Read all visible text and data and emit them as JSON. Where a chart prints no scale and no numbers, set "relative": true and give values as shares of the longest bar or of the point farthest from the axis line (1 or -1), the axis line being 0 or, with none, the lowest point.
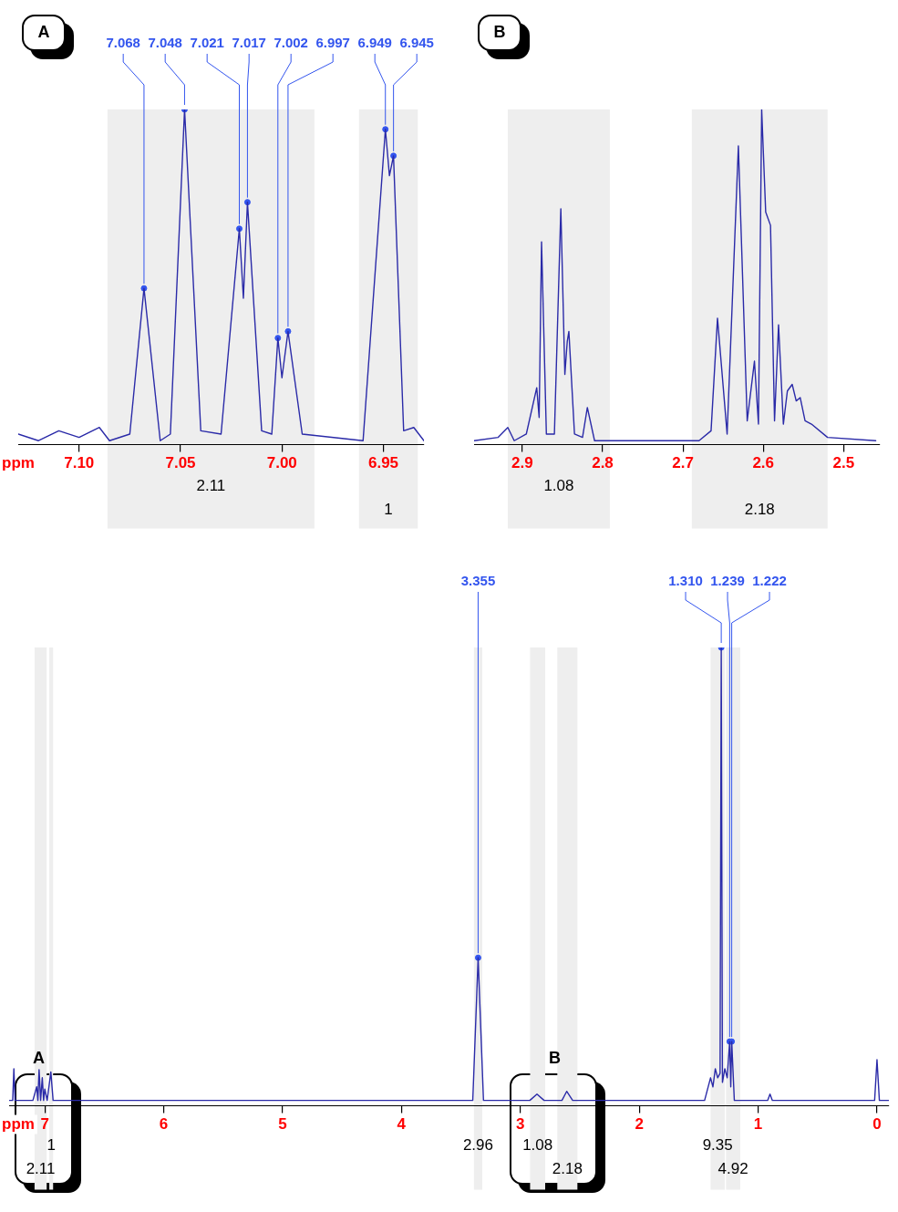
{
  "chart_data": [
    {
      "type": "line",
      "relative": true,
      "xlabel": "ppm",
      "xlim": [
        7.3,
        -0.1
      ],
      "xticks": [
        0,
        1,
        2,
        3,
        4,
        5,
        6,
        7
      ],
      "series": [
        {
          "color": "#2a2aa8",
          "x": [
            7.3,
            7.27,
            7.26,
            7.25,
            7.1,
            7.068,
            7.058,
            7.048,
            7.035,
            7.021,
            7.01,
            7.0,
            6.98,
            6.949,
            6.93,
            3.4,
            3.355,
            3.31,
            2.92,
            2.86,
            2.8,
            2.65,
            2.61,
            2.56,
            1.45,
            1.4,
            1.38,
            1.36,
            1.34,
            1.32,
            1.31,
            1.3,
            1.28,
            1.26,
            1.239,
            1.23,
            1.222,
            1.2,
            0.92,
            0.9,
            0.88,
            0.02,
            0,
            -0.02,
            -0.1
          ],
          "values": [
            0,
            0,
            0.07,
            0,
            0,
            0.03,
            0,
            0.068,
            0,
            0.05,
            0,
            0.025,
            0,
            0.063,
            0,
            0,
            0.315,
            0,
            0,
            0.014,
            0,
            0,
            0.02,
            0,
            0,
            0.05,
            0.03,
            0.07,
            0.05,
            0.06,
            1,
            0.04,
            0.07,
            0.05,
            0.13,
            0.03,
            0.13,
            0,
            0,
            0.014,
            0,
            0,
            0.09,
            0,
            0
          ]
        },
        {
          "type": "scatter",
          "marker": "circle",
          "color": "#3355ee",
          "x": [
            1.31,
            1.239,
            1.222,
            3.355
          ],
          "values": [
            1,
            0.13,
            0.13,
            0.315
          ]
        }
      ],
      "bands": [
        {
          "axis": "x",
          "from": 6.93,
          "to": 6.962,
          "label": "1",
          "color": "#eeeeee"
        },
        {
          "axis": "x",
          "from": 6.984,
          "to": 7.086,
          "label": "2.11",
          "color": "#eeeeee"
        },
        {
          "axis": "x",
          "from": 2.791,
          "to": 2.918,
          "label": "1.08",
          "color": "#eeeeee"
        },
        {
          "axis": "x",
          "from": 2.52,
          "to": 2.689,
          "label": "2.18",
          "color": "#eeeeee"
        },
        {
          "axis": "x",
          "from": 1.28,
          "to": 1.4,
          "label": "9.35",
          "color": "#eeeeee"
        },
        {
          "axis": "x",
          "from": 1.15,
          "to": 1.27,
          "label": "4.92",
          "color": "#eeeeee"
        },
        {
          "axis": "x",
          "from": 3.32,
          "to": 3.39,
          "label": "2.96",
          "color": "#eeeeee"
        }
      ],
      "annotations": [
        {
          "text": "1.310",
          "x": 1.31,
          "y": 1
        },
        {
          "text": "1.239",
          "x": 1.239,
          "y": 0.13
        },
        {
          "text": "1.222",
          "x": 1.222,
          "y": 0.13
        },
        {
          "text": "3.355",
          "x": 3.355,
          "y": 0.315
        },
        {
          "text": "A",
          "x": 7.05
        },
        {
          "text": "B",
          "x": 2.71
        }
      ]
    },
    {
      "type": "line",
      "relative": true,
      "xlabel": "ppm",
      "xlim": [
        7.13,
        6.93
      ],
      "xticks": [
        {
          "value": 6.95,
          "label": "6.95"
        },
        {
          "value": 7.0,
          "label": "7.00"
        },
        {
          "value": 7.05,
          "label": "7.05"
        },
        {
          "value": 7.1,
          "label": "7.10"
        }
      ],
      "series": [
        {
          "color": "#2a2aa8",
          "x": [
            7.13,
            7.12,
            7.11,
            7.1,
            7.09,
            7.085,
            7.075,
            7.068,
            7.06,
            7.055,
            7.048,
            7.04,
            7.03,
            7.021,
            7.019,
            7.017,
            7.01,
            7.005,
            7.002,
            7.0,
            6.997,
            6.99,
            6.96,
            6.949,
            6.947,
            6.945,
            6.94,
            6.935,
            6.93
          ],
          "values": [
            0.02,
            0,
            0.03,
            0.01,
            0.04,
            0,
            0.02,
            0.46,
            0,
            0.02,
            1,
            0.03,
            0.02,
            0.64,
            0.43,
            0.72,
            0.03,
            0.02,
            0.31,
            0.19,
            0.33,
            0.02,
            0,
            0.94,
            0.8,
            0.86,
            0.03,
            0.04,
            0
          ]
        },
        {
          "type": "scatter",
          "marker": "circle",
          "color": "#3355ee",
          "x": [
            7.068,
            7.048,
            7.021,
            7.017,
            7.002,
            6.997,
            6.949,
            6.945
          ],
          "values": [
            0.46,
            1,
            0.64,
            0.72,
            0.31,
            0.33,
            0.94,
            0.86
          ]
        }
      ],
      "bands": [
        {
          "axis": "x",
          "from": 6.984,
          "to": 7.086,
          "label": "2.11",
          "color": "#eeeeee"
        },
        {
          "axis": "x",
          "from": 6.933,
          "to": 6.962,
          "label": "1",
          "color": "#eeeeee"
        }
      ],
      "annotations": [
        {
          "text": "7.068",
          "x": 7.068,
          "y": 0.46
        },
        {
          "text": "7.048",
          "x": 7.048,
          "y": 1
        },
        {
          "text": "7.021",
          "x": 7.021,
          "y": 0.64
        },
        {
          "text": "7.017",
          "x": 7.017,
          "y": 0.72
        },
        {
          "text": "7.002",
          "x": 7.002,
          "y": 0.31
        },
        {
          "text": "6.997",
          "x": 6.997,
          "y": 0.33
        },
        {
          "text": "6.949",
          "x": 6.949,
          "y": 0.94
        },
        {
          "text": "6.945",
          "x": 6.945,
          "y": 0.86
        },
        "A"
      ]
    },
    {
      "type": "line",
      "relative": true,
      "xlim": [
        2.96,
        2.455
      ],
      "xticks": [
        2.5,
        2.6,
        2.7,
        2.8,
        2.9
      ],
      "series": [
        {
          "color": "#2a2aa8",
          "x": [
            2.96,
            2.93,
            2.918,
            2.91,
            2.895,
            2.882,
            2.879,
            2.876,
            2.87,
            2.86,
            2.852,
            2.847,
            2.844,
            2.842,
            2.835,
            2.825,
            2.819,
            2.81,
            2.75,
            2.68,
            2.665,
            2.657,
            2.645,
            2.631,
            2.62,
            2.611,
            2.606,
            2.602,
            2.597,
            2.591,
            2.586,
            2.581,
            2.575,
            2.57,
            2.564,
            2.559,
            2.554,
            2.548,
            2.54,
            2.52,
            2.46
          ],
          "values": [
            0,
            0.01,
            0.04,
            0,
            0.02,
            0.16,
            0.07,
            0.6,
            0.02,
            0.02,
            0.7,
            0.2,
            0.3,
            0.33,
            0.02,
            0.01,
            0.1,
            0,
            0,
            0,
            0.03,
            0.37,
            0.02,
            0.89,
            0.06,
            0.24,
            0.05,
            1,
            0.69,
            0.65,
            0.06,
            0.35,
            0.05,
            0.15,
            0.17,
            0.12,
            0.13,
            0.06,
            0.05,
            0.01,
            0
          ]
        }
      ],
      "bands": [
        {
          "axis": "x",
          "from": 2.791,
          "to": 2.918,
          "label": "1.08",
          "color": "#eeeeee"
        },
        {
          "axis": "x",
          "from": 2.52,
          "to": 2.689,
          "label": "2.18",
          "color": "#eeeeee"
        }
      ],
      "annotations": [
        "B"
      ]
    }
  ]
}
